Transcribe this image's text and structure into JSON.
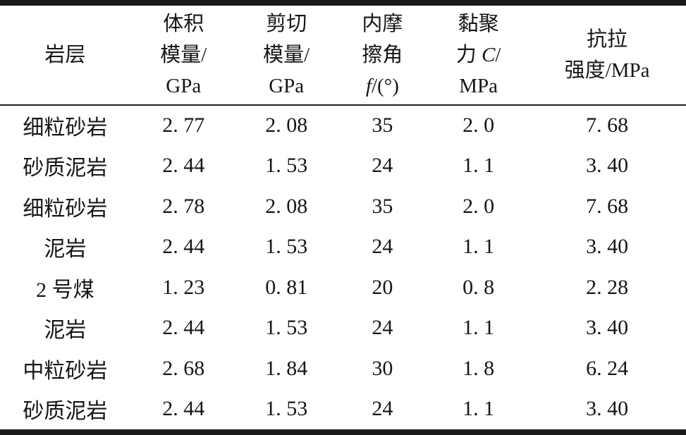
{
  "table": {
    "colors": {
      "text": "#161616",
      "background": "#ffffff",
      "rule": "#1b1b1b"
    },
    "header": {
      "rock_layer": "岩层",
      "bulk_modulus": {
        "line1": "体积",
        "line2": "模量/",
        "line3": "GPa"
      },
      "shear_modulus": {
        "line1": "剪切",
        "line2": "模量/",
        "line3": "GPa"
      },
      "friction_angle": {
        "line1": "内摩",
        "line2": "擦角",
        "line3_italic": "f",
        "line3_rest": "/(°)"
      },
      "cohesion": {
        "line1": "黏聚",
        "line2_pre": "力 ",
        "line2_italic": "C",
        "line2_post": "/",
        "line3": "MPa"
      },
      "tensile_strength": {
        "line1": "抗拉",
        "line2": "强度/MPa"
      }
    },
    "rows": [
      [
        "细粒砂岩",
        "2. 77",
        "2. 08",
        "35",
        "2. 0",
        "7. 68"
      ],
      [
        "砂质泥岩",
        "2. 44",
        "1. 53",
        "24",
        "1. 1",
        "3. 40"
      ],
      [
        "细粒砂岩",
        "2. 78",
        "2. 08",
        "35",
        "2. 0",
        "7. 68"
      ],
      [
        "泥岩",
        "2. 44",
        "1. 53",
        "24",
        "1. 1",
        "3. 40"
      ],
      [
        "2 号煤",
        "1. 23",
        "0. 81",
        "20",
        "0. 8",
        "2. 28"
      ],
      [
        "泥岩",
        "2. 44",
        "1. 53",
        "24",
        "1. 1",
        "3. 40"
      ],
      [
        "中粒砂岩",
        "2. 68",
        "1. 84",
        "30",
        "1. 8",
        "6. 24"
      ],
      [
        "砂质泥岩",
        "2. 44",
        "1. 53",
        "24",
        "1. 1",
        "3. 40"
      ]
    ]
  }
}
